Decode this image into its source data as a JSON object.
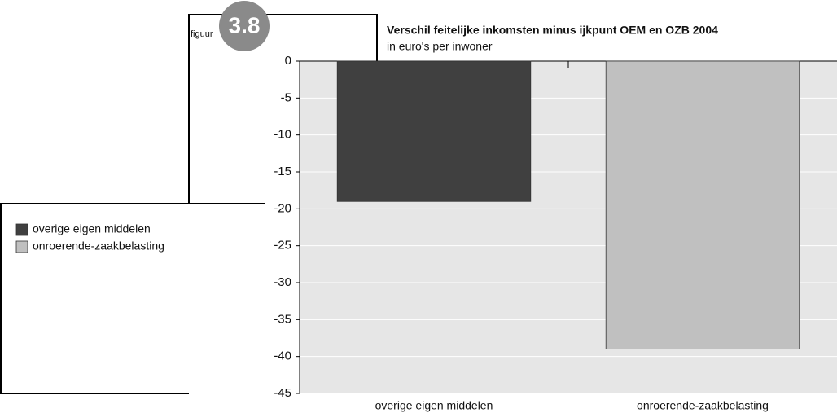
{
  "chart_data": {
    "type": "bar",
    "figure_label": "figuur",
    "figure_number": "3.8",
    "title": "Verschil feitelijke inkomsten minus ijkpunt OEM en OZB 2004",
    "subtitle": "in euro's per inwoner",
    "categories": [
      "overige eigen middelen",
      "onroerende-zaakbelasting"
    ],
    "values": [
      -19,
      -39
    ],
    "colors": [
      "#404040",
      "#c0c0c0"
    ],
    "ylim": [
      -45,
      0
    ],
    "yticks": [
      0,
      -5,
      -10,
      -15,
      -20,
      -25,
      -30,
      -35,
      -40,
      -45
    ],
    "grid": true,
    "legend": "left"
  }
}
